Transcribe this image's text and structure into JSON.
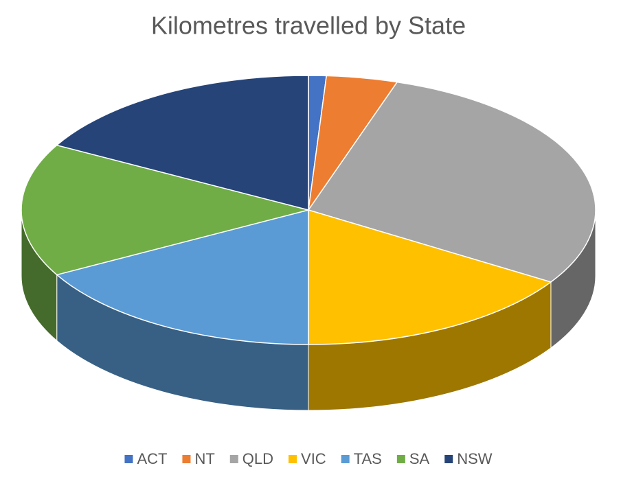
{
  "chart_data": {
    "type": "pie",
    "title": "Kilometres travelled by State",
    "categories": [
      "ACT",
      "NT",
      "QLD",
      "VIC",
      "TAS",
      "SA",
      "NSW"
    ],
    "values": [
      1,
      4,
      29,
      16,
      17,
      16,
      17
    ],
    "colors": [
      "#4472c4",
      "#ed7d31",
      "#a5a5a5",
      "#ffc000",
      "#5b9bd5",
      "#70ad47",
      "#264478"
    ],
    "legend": "bottom"
  }
}
